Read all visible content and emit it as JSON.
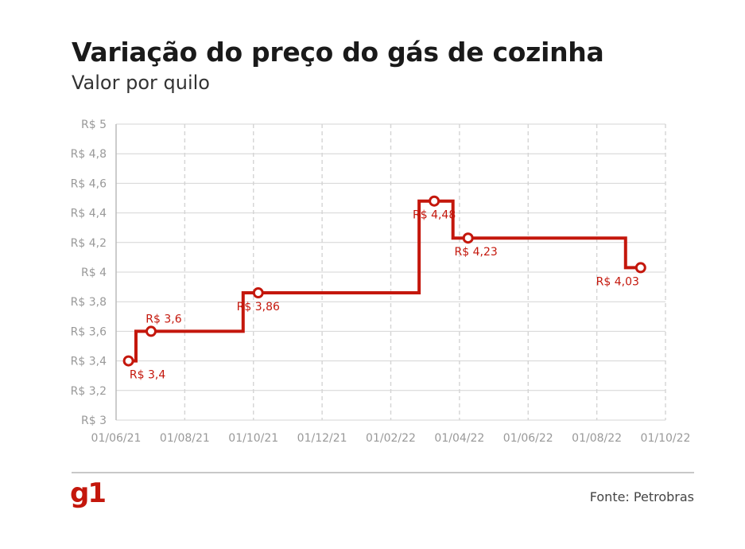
{
  "title": "Variação do preço do gás de cozinha",
  "subtitle": "Valor por quilo",
  "source": "Fonte: Petrobras",
  "logo": "g1",
  "colors": {
    "accent": "#c4170c",
    "grid": "#d4d4d4",
    "tick": "#999999"
  },
  "chart_data": {
    "type": "line",
    "step": true,
    "grid": true,
    "x_ticks": [
      "01/06/21",
      "01/08/21",
      "01/10/21",
      "01/12/21",
      "01/02/22",
      "01/04/22",
      "01/06/22",
      "01/08/22",
      "01/10/22"
    ],
    "x_range": [
      "2021-06-01",
      "2022-10-01"
    ],
    "y_ticks": [
      "R$ 3",
      "R$ 3,2",
      "R$ 3,4",
      "R$ 3,6",
      "R$ 3,8",
      "R$ 4",
      "R$ 4,2",
      "R$ 4,4",
      "R$ 4,6",
      "R$ 4,8",
      "R$ 5"
    ],
    "ylim": [
      3,
      5
    ],
    "series": [
      {
        "points": [
          {
            "date": "2021-06-12",
            "value": 3.4,
            "label": "R$ 3,4"
          },
          {
            "date": "2021-07-02",
            "value": 3.6,
            "label": "R$ 3,6"
          },
          {
            "date": "2021-10-05",
            "value": 3.86,
            "label": "R$ 3,86"
          },
          {
            "date": "2022-03-10",
            "value": 4.48,
            "label": "R$ 4,48"
          },
          {
            "date": "2022-04-09",
            "value": 4.23,
            "label": "R$ 4,23"
          },
          {
            "date": "2022-09-09",
            "value": 4.03,
            "label": "R$ 4,03"
          }
        ]
      }
    ]
  }
}
